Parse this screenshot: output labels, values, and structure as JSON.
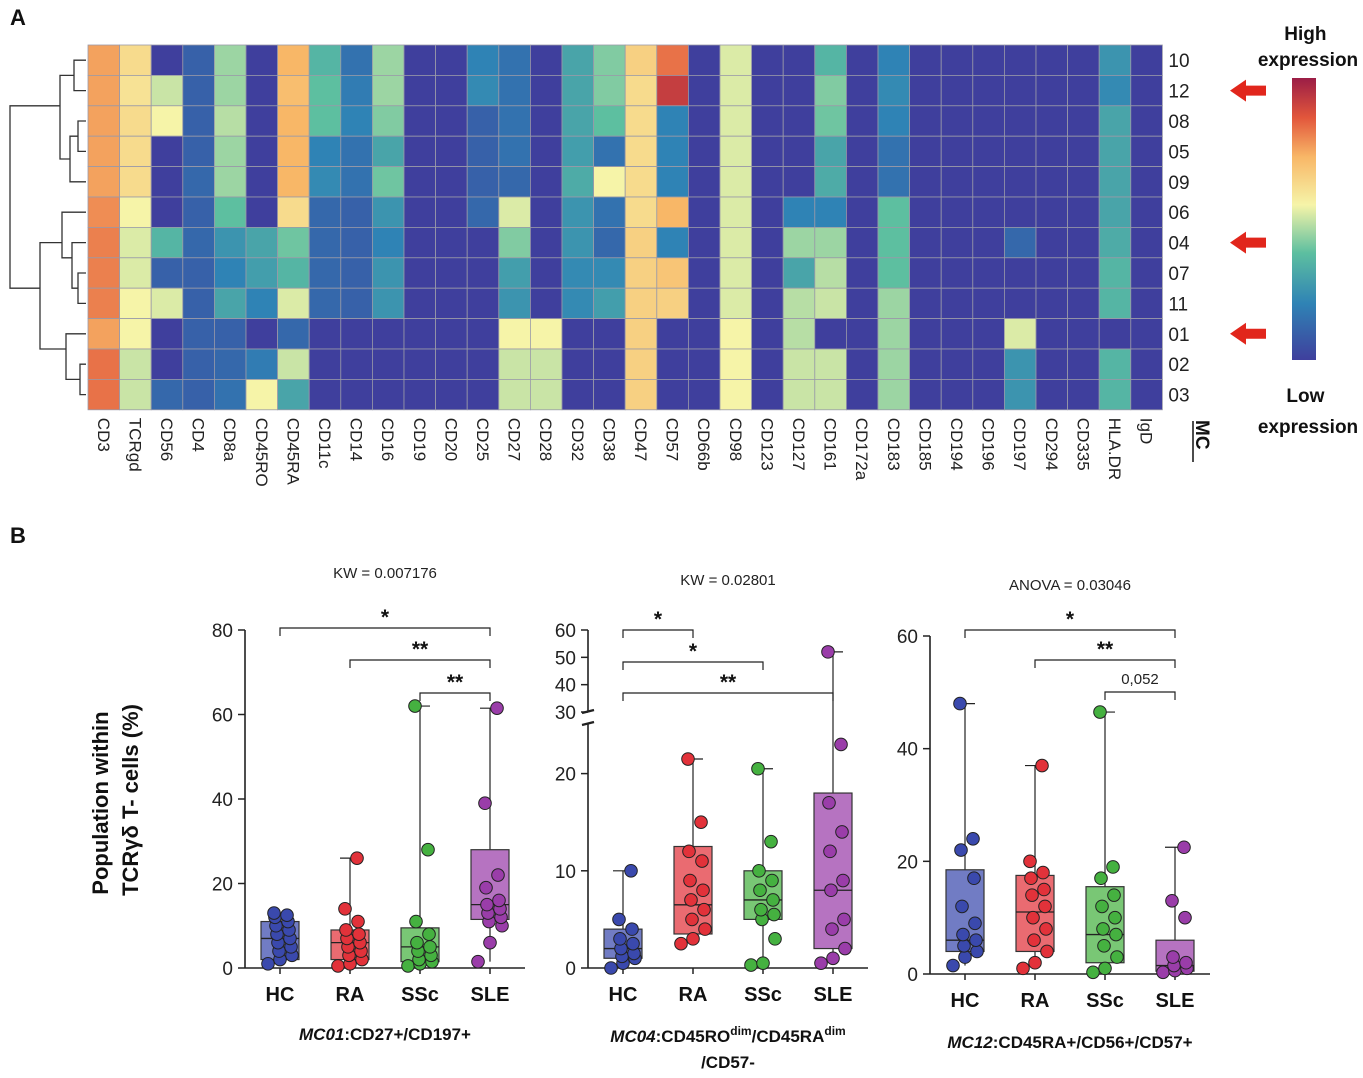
{
  "panel_a_label": "A",
  "panel_b_label": "B",
  "legend": {
    "high": "High\nexpression",
    "low": "Low\nexpression"
  },
  "mc_label": "MC",
  "y_axis_label": "Population within\nTCRγδ T- cells (%)",
  "colors": {
    "low": "#3f3f9d",
    "mid": "#f6f4a8",
    "high": "#9b1d46",
    "HC": "#3a49ad",
    "RA": "#e2323a",
    "SSc": "#45b140",
    "SLE": "#9a3da9"
  },
  "chart_data": [
    {
      "type": "heatmap",
      "title": "",
      "columns": [
        "CD3",
        "TCRgd",
        "CD56",
        "CD4",
        "CD8a",
        "CD45RO",
        "CD45RA",
        "CD11c",
        "CD14",
        "CD16",
        "CD19",
        "CD20",
        "CD25",
        "CD27",
        "CD28",
        "CD32",
        "CD38",
        "CD47",
        "CD57",
        "CD66b",
        "CD98",
        "CD123",
        "CD127",
        "CD161",
        "CD172a",
        "CD183",
        "CD185",
        "CD194",
        "CD196",
        "CD197",
        "CD294",
        "CD335",
        "HLA.DR",
        "IgD"
      ],
      "rows": [
        "10",
        "12",
        "08",
        "05",
        "09",
        "06",
        "04",
        "07",
        "11",
        "01",
        "02",
        "03"
      ],
      "values": [
        [
          0.75,
          0.62,
          0.0,
          0.1,
          0.45,
          0.0,
          0.72,
          0.35,
          0.15,
          0.45,
          0.0,
          0.0,
          0.2,
          0.15,
          0.0,
          0.3,
          0.42,
          0.65,
          0.82,
          0.0,
          0.52,
          0.0,
          0.0,
          0.35,
          0.0,
          0.2,
          0.0,
          0.0,
          0.0,
          0.0,
          0.0,
          0.0,
          0.25,
          0.0
        ],
        [
          0.75,
          0.6,
          0.5,
          0.1,
          0.45,
          0.0,
          0.7,
          0.38,
          0.18,
          0.45,
          0.0,
          0.0,
          0.22,
          0.15,
          0.0,
          0.3,
          0.42,
          0.62,
          0.92,
          0.0,
          0.52,
          0.0,
          0.0,
          0.42,
          0.0,
          0.22,
          0.0,
          0.0,
          0.0,
          0.0,
          0.0,
          0.0,
          0.22,
          0.0
        ],
        [
          0.75,
          0.62,
          0.55,
          0.1,
          0.48,
          0.0,
          0.72,
          0.38,
          0.2,
          0.42,
          0.0,
          0.0,
          0.1,
          0.15,
          0.0,
          0.3,
          0.38,
          0.62,
          0.2,
          0.0,
          0.52,
          0.0,
          0.0,
          0.4,
          0.0,
          0.2,
          0.0,
          0.0,
          0.0,
          0.0,
          0.0,
          0.0,
          0.3,
          0.0
        ],
        [
          0.75,
          0.62,
          0.0,
          0.1,
          0.45,
          0.0,
          0.72,
          0.2,
          0.15,
          0.3,
          0.0,
          0.0,
          0.1,
          0.15,
          0.0,
          0.28,
          0.15,
          0.62,
          0.2,
          0.0,
          0.52,
          0.0,
          0.0,
          0.3,
          0.0,
          0.15,
          0.0,
          0.0,
          0.0,
          0.0,
          0.0,
          0.0,
          0.3,
          0.0
        ],
        [
          0.75,
          0.62,
          0.0,
          0.12,
          0.45,
          0.0,
          0.72,
          0.22,
          0.15,
          0.4,
          0.0,
          0.0,
          0.1,
          0.12,
          0.0,
          0.32,
          0.55,
          0.62,
          0.2,
          0.0,
          0.52,
          0.0,
          0.0,
          0.32,
          0.0,
          0.15,
          0.0,
          0.0,
          0.0,
          0.0,
          0.0,
          0.0,
          0.3,
          0.0
        ],
        [
          0.78,
          0.55,
          0.0,
          0.1,
          0.38,
          0.0,
          0.62,
          0.12,
          0.1,
          0.25,
          0.0,
          0.0,
          0.12,
          0.52,
          0.0,
          0.25,
          0.15,
          0.62,
          0.72,
          0.0,
          0.52,
          0.0,
          0.2,
          0.2,
          0.0,
          0.38,
          0.0,
          0.0,
          0.0,
          0.0,
          0.0,
          0.0,
          0.3,
          0.0
        ],
        [
          0.8,
          0.52,
          0.35,
          0.12,
          0.25,
          0.3,
          0.4,
          0.12,
          0.1,
          0.2,
          0.0,
          0.0,
          0.0,
          0.42,
          0.0,
          0.25,
          0.12,
          0.65,
          0.2,
          0.0,
          0.52,
          0.0,
          0.45,
          0.45,
          0.0,
          0.38,
          0.0,
          0.0,
          0.0,
          0.12,
          0.0,
          0.0,
          0.32,
          0.0
        ],
        [
          0.8,
          0.52,
          0.1,
          0.1,
          0.2,
          0.28,
          0.35,
          0.12,
          0.1,
          0.25,
          0.0,
          0.0,
          0.0,
          0.28,
          0.0,
          0.22,
          0.22,
          0.65,
          0.68,
          0.0,
          0.52,
          0.0,
          0.3,
          0.48,
          0.0,
          0.38,
          0.0,
          0.0,
          0.0,
          0.0,
          0.0,
          0.0,
          0.35,
          0.0
        ],
        [
          0.8,
          0.55,
          0.52,
          0.1,
          0.3,
          0.2,
          0.52,
          0.12,
          0.1,
          0.25,
          0.0,
          0.0,
          0.0,
          0.25,
          0.0,
          0.22,
          0.28,
          0.65,
          0.65,
          0.0,
          0.52,
          0.0,
          0.48,
          0.5,
          0.0,
          0.45,
          0.0,
          0.0,
          0.0,
          0.0,
          0.0,
          0.0,
          0.35,
          0.0
        ],
        [
          0.75,
          0.55,
          0.0,
          0.1,
          0.1,
          0.0,
          0.12,
          0.0,
          0.0,
          0.0,
          0.0,
          0.0,
          0.0,
          0.55,
          0.55,
          0.0,
          0.0,
          0.65,
          0.0,
          0.0,
          0.55,
          0.0,
          0.48,
          0.0,
          0.0,
          0.45,
          0.0,
          0.0,
          0.0,
          0.52,
          0.0,
          0.0,
          0.0,
          0.0
        ],
        [
          0.82,
          0.5,
          0.0,
          0.1,
          0.12,
          0.18,
          0.5,
          0.0,
          0.0,
          0.0,
          0.0,
          0.0,
          0.0,
          0.5,
          0.5,
          0.0,
          0.0,
          0.65,
          0.0,
          0.0,
          0.55,
          0.0,
          0.5,
          0.5,
          0.0,
          0.45,
          0.0,
          0.0,
          0.0,
          0.25,
          0.0,
          0.0,
          0.35,
          0.0
        ],
        [
          0.82,
          0.5,
          0.12,
          0.1,
          0.15,
          0.55,
          0.3,
          0.0,
          0.0,
          0.0,
          0.0,
          0.0,
          0.0,
          0.5,
          0.5,
          0.0,
          0.0,
          0.65,
          0.0,
          0.0,
          0.55,
          0.0,
          0.5,
          0.5,
          0.0,
          0.45,
          0.0,
          0.0,
          0.0,
          0.25,
          0.0,
          0.0,
          0.35,
          0.0
        ]
      ],
      "arrows_at_rows": [
        "12",
        "04",
        "01"
      ],
      "colorbar": "low (dark blue) to high (dark red), 0-1"
    },
    {
      "type": "box",
      "title": "KW = 0.007176",
      "xlabel_prefix": "MC01",
      "xlabel_rest": ":CD27+/CD197+",
      "categories": [
        "HC",
        "RA",
        "SSc",
        "SLE"
      ],
      "ylim": [
        0,
        80
      ],
      "yticks": [
        0,
        20,
        40,
        60,
        80
      ],
      "boxes": [
        {
          "q1": 2,
          "median": 7,
          "q3": 11,
          "min": 1,
          "max": 13
        },
        {
          "q1": 2,
          "median": 6,
          "q3": 9,
          "min": 0.5,
          "max": 26
        },
        {
          "q1": 1.5,
          "median": 5,
          "q3": 9.5,
          "min": 0.5,
          "max": 62
        },
        {
          "q1": 11.5,
          "median": 15,
          "q3": 28,
          "min": 1.5,
          "max": 61.5
        }
      ],
      "points": [
        [
          1,
          2,
          3,
          4,
          5,
          6,
          7,
          8,
          9,
          10,
          11,
          12,
          12.5,
          13
        ],
        [
          0.5,
          1,
          2,
          3,
          4,
          5,
          6,
          7,
          8,
          9,
          11,
          14,
          26
        ],
        [
          0.5,
          1,
          1.5,
          2,
          3,
          4,
          5,
          6,
          8,
          11,
          28,
          62
        ],
        [
          1.5,
          6,
          10,
          11,
          12,
          13,
          14,
          15,
          16,
          19,
          22,
          39,
          61.5
        ]
      ],
      "brackets": [
        {
          "from": "HC",
          "to": "SLE",
          "label": "*"
        },
        {
          "from": "RA",
          "to": "SLE",
          "label": "**"
        },
        {
          "from": "SSc",
          "to": "SLE",
          "label": "**"
        }
      ]
    },
    {
      "type": "box",
      "title": "KW = 0.02801",
      "xlabel_prefix": "MC04",
      "xlabel_rest": ":CD45RO",
      "xlabel_sup1": "dim",
      "xlabel_mid": "/CD45RA",
      "xlabel_sup2": "dim",
      "xlabel_line2": "/CD57-",
      "categories": [
        "HC",
        "RA",
        "SSc",
        "SLE"
      ],
      "ylim_lower": [
        0,
        25
      ],
      "ylim_upper": [
        30,
        60
      ],
      "yticks_lower": [
        0,
        10,
        20
      ],
      "yticks_upper": [
        30,
        40,
        50,
        60
      ],
      "boxes": [
        {
          "q1": 1,
          "median": 2,
          "q3": 4,
          "min": 0,
          "max": 10
        },
        {
          "q1": 3.5,
          "median": 6.5,
          "q3": 12.5,
          "min": 2.5,
          "max": 21.5
        },
        {
          "q1": 5,
          "median": 7,
          "q3": 10,
          "min": 0.3,
          "max": 20.5
        },
        {
          "q1": 2,
          "median": 8,
          "q3": 18,
          "min": 0.5,
          "max": 52
        }
      ],
      "points": [
        [
          0,
          0.5,
          1,
          1.2,
          1.5,
          2,
          2.5,
          3,
          4,
          5,
          10
        ],
        [
          2.5,
          3,
          4,
          5,
          6,
          7,
          8,
          9,
          11,
          12,
          15,
          21.5
        ],
        [
          0.3,
          0.5,
          3,
          5,
          5.5,
          6,
          7,
          8,
          9,
          10,
          13,
          20.5
        ],
        [
          0.5,
          1,
          2,
          4,
          5,
          8,
          9,
          12,
          14,
          17,
          23,
          52
        ]
      ],
      "brackets": [
        {
          "from": "HC",
          "to": "RA",
          "label": "*"
        },
        {
          "from": "HC",
          "to": "SSc",
          "label": "*"
        },
        {
          "from": "HC",
          "to": "SLE",
          "label": "**"
        }
      ]
    },
    {
      "type": "box",
      "title": "ANOVA = 0.03046",
      "xlabel_prefix": "MC12",
      "xlabel_rest": ":CD45RA+/CD56+/CD57+",
      "categories": [
        "HC",
        "RA",
        "SSc",
        "SLE"
      ],
      "ylim": [
        0,
        60
      ],
      "yticks": [
        0,
        20,
        40,
        60
      ],
      "boxes": [
        {
          "q1": 4,
          "median": 6,
          "q3": 18.5,
          "min": 1.5,
          "max": 48
        },
        {
          "q1": 4,
          "median": 11,
          "q3": 17.5,
          "min": 1,
          "max": 37
        },
        {
          "q1": 2,
          "median": 7,
          "q3": 15.5,
          "min": 0.3,
          "max": 46.5
        },
        {
          "q1": 0.5,
          "median": 1.5,
          "q3": 6,
          "min": 0.3,
          "max": 22.5
        }
      ],
      "points": [
        [
          1.5,
          3,
          4,
          5,
          6,
          7,
          9,
          12,
          17,
          22,
          24,
          48
        ],
        [
          1,
          2,
          4,
          6,
          8,
          10,
          12,
          14,
          15,
          17,
          18,
          20,
          37
        ],
        [
          0.3,
          1,
          3,
          5,
          7,
          8,
          10,
          12,
          14,
          17,
          19,
          46.5
        ],
        [
          0.3,
          0.6,
          1,
          1.5,
          2,
          3,
          10,
          13,
          22.5
        ]
      ],
      "brackets": [
        {
          "from": "HC",
          "to": "SLE",
          "label": "*"
        },
        {
          "from": "RA",
          "to": "SLE",
          "label": "**"
        },
        {
          "from": "SSc",
          "to": "SLE",
          "label": "0,052"
        }
      ]
    }
  ]
}
